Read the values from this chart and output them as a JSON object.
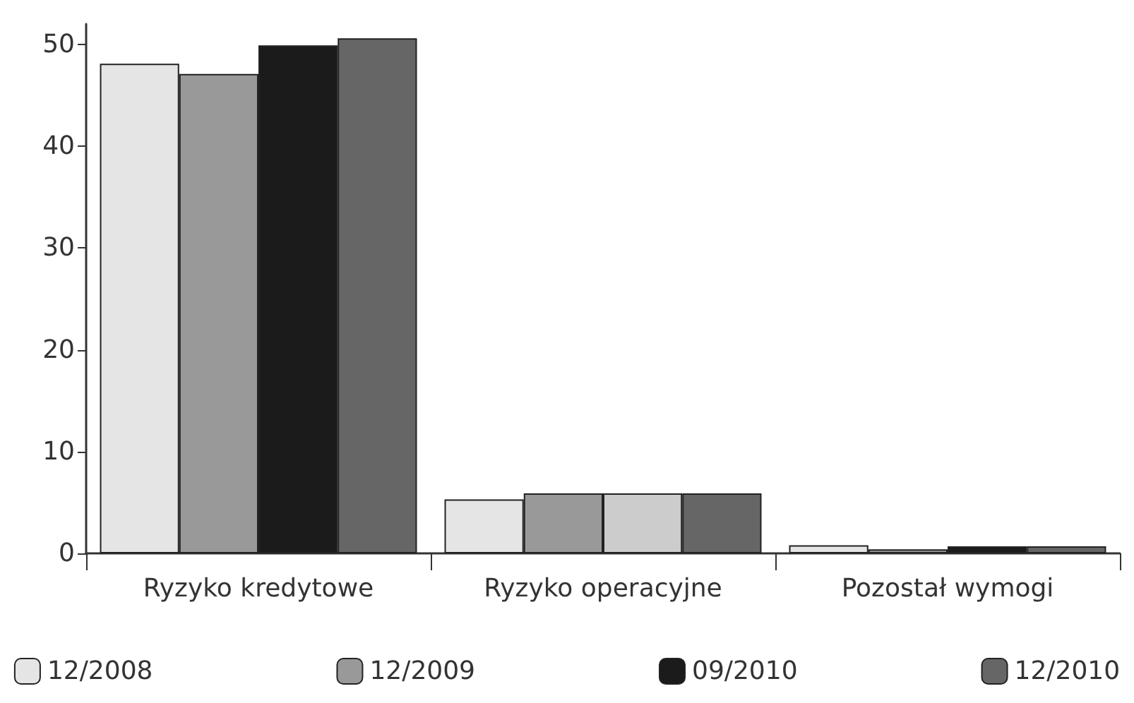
{
  "chart_data": {
    "type": "bar",
    "categories": [
      "Ryzyko kredytowe",
      "Ryzyko operacyjne",
      "Pozostał wymogi"
    ],
    "series": [
      {
        "name": "12/2008",
        "color": "#e5e5e5",
        "values": [
          48.1,
          5.3,
          0.8
        ]
      },
      {
        "name": "12/2009",
        "color": "#999999",
        "values": [
          47.1,
          5.9,
          0.4
        ]
      },
      {
        "name": "09/2010",
        "color": "#1b1b1b",
        "colors": [
          "#1b1b1b",
          "#cccccc",
          "#1b1b1b"
        ],
        "values": [
          49.9,
          5.9,
          0.7
        ]
      },
      {
        "name": "12/2010",
        "color": "#666666",
        "values": [
          50.6,
          5.9,
          0.7
        ]
      }
    ],
    "ylim": [
      0,
      52
    ],
    "yticks": [
      0,
      10,
      20,
      30,
      40,
      50
    ],
    "grid": false,
    "legend": "bottom"
  }
}
